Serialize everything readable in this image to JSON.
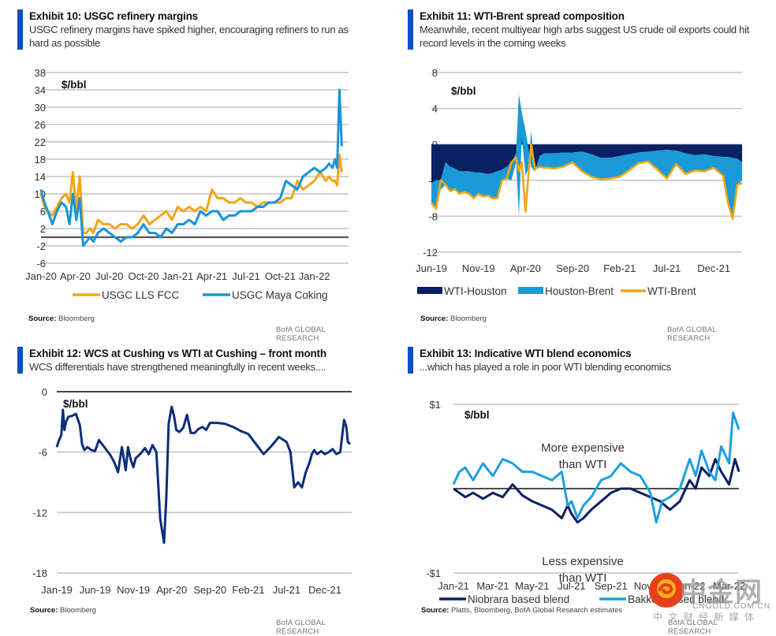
{
  "panels": [
    {
      "title": "Exhibit 10: USGC refinery margins",
      "subtitle": "USGC refinery margins have spiked higher, encouraging refiners to run as hard as possible",
      "source_label": "Source:",
      "source": "Bloomberg",
      "credit": "BofA GLOBAL RESEARCH"
    },
    {
      "title": "Exhibit 11: WTI-Brent spread composition",
      "subtitle": "Meanwhile, recent multiyear high arbs suggest US crude oil exports could hit record levels in the coming weeks",
      "source_label": "Source:",
      "source": "Bloomberg",
      "credit": "BofA GLOBAL RESEARCH"
    },
    {
      "title": "Exhibit 12: WCS at Cushing vs WTI at Cushing – front month",
      "subtitle": "WCS differentials have strengthened meaningfully in recent weeks....",
      "source_label": "Source:",
      "source": "Bloomberg",
      "credit": "BofA GLOBAL RESEARCH"
    },
    {
      "title": "Exhibit 13: Indicative WTI blend economics",
      "subtitle": "...which has played a role in poor WTI blending economics",
      "source_label": "Source:",
      "source": "Platts, Bloomberg, BofA Global Research estimates",
      "credit": "BofA GLOBAL RESEARCH"
    }
  ],
  "watermark": {
    "brand": "中金网",
    "domain": "CNGOLD.COM.CN",
    "tagline": "中 文 财 经 新 媒 体"
  },
  "chart_data": [
    {
      "type": "line",
      "title": "Exhibit 10: USGC refinery margins",
      "unit_label": "$/bbl",
      "ylim": [
        -6,
        38
      ],
      "yticks": [
        "38",
        "34",
        "30",
        "26",
        "22",
        "18",
        "14",
        "10",
        "6",
        "2",
        "-2",
        "-6"
      ],
      "ytick_values": [
        38,
        34,
        30,
        26,
        22,
        18,
        14,
        10,
        6,
        2,
        -2,
        -6
      ],
      "xlim": [
        0,
        27
      ],
      "xticks": [
        "Jan-20",
        "Apr-20",
        "Jul-20",
        "Oct-20",
        "Jan-21",
        "Apr-21",
        "Jul-21",
        "Oct-21",
        "Jan-22"
      ],
      "xtick_values": [
        0,
        3,
        6,
        9,
        12,
        15,
        18,
        21,
        24
      ],
      "zero_line": 0,
      "grid": true,
      "legend": "bottom",
      "series": [
        {
          "name": "USGC LLS FCC",
          "color": "#f2a516",
          "x": [
            0,
            0.3,
            0.6,
            1,
            1.4,
            1.8,
            2.2,
            2.5,
            2.8,
            3.1,
            3.4,
            3.7,
            4,
            4.3,
            4.6,
            5,
            5.5,
            6,
            6.5,
            7,
            7.5,
            8,
            8.5,
            9,
            9.5,
            10,
            10.5,
            11,
            11.5,
            12,
            12.5,
            13,
            13.5,
            14,
            14.5,
            15,
            15.5,
            16,
            16.5,
            17,
            17.5,
            18,
            18.5,
            19,
            19.5,
            20,
            20.5,
            21,
            21.5,
            22,
            22.5,
            23,
            23.5,
            24,
            24.5,
            25,
            25.3,
            25.6,
            25.8,
            26,
            26.2,
            26.4
          ],
          "values": [
            10,
            7,
            6,
            5,
            7,
            9,
            10,
            8,
            15,
            6,
            14,
            1,
            1,
            2,
            1,
            4,
            3,
            3,
            2,
            3,
            3,
            2,
            3,
            5,
            3,
            4,
            5,
            6,
            4,
            7,
            6,
            7,
            6,
            7,
            6,
            11,
            9,
            9,
            8,
            8,
            9,
            8,
            8,
            7,
            8,
            8,
            8,
            8,
            9,
            9,
            13,
            11,
            12,
            13,
            15,
            13,
            14,
            13,
            13,
            12,
            19,
            15
          ]
        },
        {
          "name": "USGC Maya Coking",
          "color": "#1795d8",
          "x": [
            0,
            0.3,
            0.6,
            1,
            1.4,
            1.8,
            2.2,
            2.5,
            2.8,
            3.1,
            3.4,
            3.7,
            4,
            4.3,
            4.6,
            5,
            5.5,
            6,
            6.5,
            7,
            7.5,
            8,
            8.5,
            9,
            9.5,
            10,
            10.5,
            11,
            11.5,
            12,
            12.5,
            13,
            13.5,
            14,
            14.5,
            15,
            15.5,
            16,
            16.5,
            17,
            17.5,
            18,
            18.5,
            19,
            19.5,
            20,
            20.5,
            21,
            21.5,
            22,
            22.5,
            23,
            23.5,
            24,
            24.5,
            25,
            25.3,
            25.6,
            25.8,
            26,
            26.2,
            26.4
          ],
          "values": [
            11,
            8,
            6,
            3,
            6,
            8,
            7,
            3,
            10,
            4,
            9,
            -2,
            -1,
            0,
            -1,
            1,
            2,
            1,
            0,
            -1,
            0,
            0,
            1,
            3,
            1,
            1,
            0,
            2,
            1,
            3,
            3,
            4,
            3,
            6,
            5,
            6,
            6,
            4,
            5,
            5,
            6,
            6,
            6,
            7,
            7,
            8,
            8,
            9,
            13,
            12,
            11,
            14,
            15,
            16,
            15,
            16,
            17,
            16,
            18,
            16,
            34,
            21
          ]
        }
      ]
    },
    {
      "type": "area",
      "title": "Exhibit 11: WTI-Brent spread composition",
      "unit_label": "$/bbl",
      "ylim": [
        -12,
        8
      ],
      "yticks": [
        "8",
        "4",
        "0",
        "-4",
        "-8",
        "-12"
      ],
      "ytick_values": [
        8,
        4,
        0,
        -4,
        -8,
        -12
      ],
      "xlim": [
        0,
        33
      ],
      "xticks": [
        "Jun-19",
        "Nov-19",
        "Apr-20",
        "Sep-20",
        "Feb-21",
        "Jul-21",
        "Dec-21"
      ],
      "xtick_values": [
        0,
        5,
        10,
        15,
        20,
        25,
        30
      ],
      "grid": true,
      "legend": "bottom",
      "x": [
        0,
        0.5,
        1,
        1.5,
        2,
        2.5,
        3,
        3.5,
        4,
        4.5,
        5,
        5.5,
        6,
        6.5,
        7,
        7.5,
        8,
        8.5,
        9,
        9.3,
        9.6,
        10,
        10.3,
        10.6,
        11,
        11.5,
        12,
        12.5,
        13,
        14,
        15,
        16,
        17,
        18,
        19,
        20,
        21,
        22,
        23,
        24,
        25,
        26,
        27,
        28,
        29,
        30,
        31,
        31.5,
        32,
        32.5,
        33
      ],
      "series": [
        {
          "name": "WTI-Houston",
          "color": "#0b1f63",
          "values": [
            -4.3,
            -4,
            -4,
            -2,
            -2.5,
            -2.7,
            -3,
            -3,
            -3,
            -3.1,
            -3.1,
            -3.2,
            -3.3,
            -3.2,
            -3,
            -2.8,
            -2.5,
            -2,
            -1,
            5.5,
            3.5,
            1.5,
            -0.5,
            -2.5,
            -3,
            -1.3,
            -1,
            -1,
            -1,
            -0.9,
            -0.9,
            -0.8,
            -1.1,
            -1.5,
            -1.5,
            -1.3,
            -1.1,
            -0.9,
            -0.8,
            -0.7,
            -0.6,
            -0.7,
            -1,
            -1.2,
            -1.1,
            -1.3,
            -1.4,
            -1.4,
            -1.5,
            -1.6,
            -2
          ]
        },
        {
          "name": "Houston-Brent",
          "color": "#1a9ad6",
          "values": [
            -6.5,
            -7.2,
            -5,
            -4.5,
            -5.2,
            -5,
            -5.5,
            -5.3,
            -5.5,
            -6,
            -5.5,
            -5.8,
            -5.7,
            -6,
            -6,
            -4,
            -3.8,
            -4,
            -2,
            -8,
            0.8,
            -3.5,
            -2.7,
            1.5,
            -2.7,
            -2.5,
            -2.6,
            -2.6,
            -2.7,
            -2.5,
            -2,
            -3,
            -3.6,
            -3.9,
            -3.8,
            -3.6,
            -2.9,
            -2.1,
            -1.9,
            -2.8,
            -3.8,
            -2.2,
            -3.3,
            -2.9,
            -3,
            -2.6,
            -3.5,
            -6.5,
            -8.3,
            -4.5,
            -4
          ]
        },
        {
          "name": "WTI-Brent",
          "color": "#f2a516",
          "line": true,
          "values": [
            -6.5,
            -7.2,
            -4,
            -4.5,
            -5.2,
            -5,
            -5.5,
            -5.3,
            -5.5,
            -6,
            -5.5,
            -5.8,
            -5.7,
            -6,
            -6,
            -4,
            -3.8,
            -2,
            -1.5,
            -3,
            -2,
            -7.5,
            -3.5,
            0,
            -2.7,
            -2.5,
            -2.6,
            -2.6,
            -2.7,
            -2.5,
            -2,
            -3,
            -3.6,
            -3.9,
            -3.8,
            -3.6,
            -2.9,
            -2.1,
            -1.9,
            -2.8,
            -3.8,
            -2.2,
            -3.3,
            -2.9,
            -3,
            -2.6,
            -3.5,
            -6.5,
            -8.3,
            -4.5,
            -4.3
          ]
        }
      ]
    },
    {
      "type": "line",
      "title": "Exhibit 12: WCS at Cushing vs WTI at Cushing – front month",
      "unit_label": "$/bbl",
      "ylim": [
        -18,
        0
      ],
      "yticks": [
        "0",
        "-6",
        "-12",
        "-18"
      ],
      "ytick_values": [
        0,
        -6,
        -12,
        -18
      ],
      "xlim": [
        0,
        38.5
      ],
      "xticks": [
        "Jan-19",
        "Jun-19",
        "Nov-19",
        "Apr-20",
        "Sep-20",
        "Feb-21",
        "Jul-21",
        "Dec-21"
      ],
      "xtick_values": [
        0,
        5,
        10,
        15,
        20,
        25,
        30,
        35
      ],
      "zero_line": 0,
      "grid": true,
      "legend": "none",
      "series": [
        {
          "name": "WCS-WTI",
          "color": "#0b2d7a",
          "x": [
            0,
            0.3,
            0.6,
            0.8,
            1,
            1.2,
            1.5,
            2,
            2.5,
            3,
            3.3,
            3.6,
            4,
            4.5,
            5,
            5.5,
            6,
            6.5,
            7,
            7.5,
            8,
            8.5,
            9,
            9.3,
            9.6,
            10,
            10.3,
            10.6,
            11,
            11.5,
            12,
            12.5,
            13,
            13.5,
            14,
            14.3,
            14.6,
            15,
            15.3,
            15.6,
            16,
            16.5,
            17,
            17.5,
            18,
            18.5,
            19,
            19.5,
            20,
            21,
            22,
            23,
            24,
            25,
            26,
            27,
            28,
            29,
            30,
            30.5,
            31,
            31.5,
            32,
            32.5,
            33,
            33.3,
            33.6,
            34,
            34.5,
            35,
            35.5,
            36,
            36.5,
            37,
            37.5,
            37.8,
            38,
            38.3
          ],
          "values": [
            -5.5,
            -4.8,
            -4.3,
            -1.8,
            -3.8,
            -3,
            -2.5,
            -2.4,
            -2.2,
            -3.3,
            -5.2,
            -5.8,
            -5.5,
            -5.8,
            -5.9,
            -4.8,
            -5.3,
            -5.8,
            -6.3,
            -7,
            -8,
            -5.5,
            -7.8,
            -5.5,
            -6.6,
            -7.5,
            -6.6,
            -6.4,
            -6.1,
            -5.6,
            -6.2,
            -5.3,
            -6,
            -12.6,
            -15,
            -10.5,
            -3.2,
            -1.5,
            -2.4,
            -3.8,
            -4,
            -3.6,
            -2.3,
            -4.1,
            -4.1,
            -3.7,
            -3.5,
            -3.8,
            -3.1,
            -3.1,
            -3.2,
            -3.5,
            -3.9,
            -4.2,
            -5.2,
            -6.2,
            -5.4,
            -4.5,
            -5,
            -6,
            -9.5,
            -9,
            -9.5,
            -8,
            -7,
            -6.2,
            -5.8,
            -6.2,
            -5.9,
            -6.2,
            -6,
            -5.7,
            -6.2,
            -6,
            -2.8,
            -3.5,
            -5,
            -5.2
          ]
        }
      ]
    },
    {
      "type": "line",
      "title": "Exhibit 13: Indicative WTI blend economics",
      "unit_label": "$/bbl",
      "ylim": [
        -1,
        1
      ],
      "yticks": [
        "$1",
        "-$1"
      ],
      "ytick_values": [
        1,
        -1
      ],
      "xlim": [
        0,
        14.5
      ],
      "xticks": [
        "Jan-21",
        "Mar-21",
        "May-21",
        "Jul-21",
        "Sep-21",
        "Nov-21",
        "Jan-22",
        "Mar-22"
      ],
      "xtick_values": [
        0,
        2,
        4,
        6,
        8,
        10,
        12,
        14
      ],
      "zero_line": 0,
      "grid": true,
      "legend": "bottom",
      "annotations": [
        "More expensive than WTI",
        "Less expensive than WTI"
      ],
      "series": [
        {
          "name": "Niobrara based blend",
          "color": "#0b1f63",
          "x": [
            0,
            0.3,
            0.6,
            1,
            1.5,
            2,
            2.5,
            3,
            3.5,
            4,
            4.5,
            5,
            5.5,
            5.8,
            6,
            6.3,
            6.6,
            7,
            7.5,
            8,
            8.5,
            9,
            9.5,
            10,
            10.5,
            11,
            11.5,
            12,
            12.3,
            12.6,
            13,
            13.3,
            13.6,
            14,
            14.3,
            14.5
          ],
          "values": [
            0,
            -0.05,
            -0.1,
            -0.05,
            -0.12,
            -0.05,
            -0.1,
            0.05,
            -0.08,
            -0.15,
            -0.2,
            -0.25,
            -0.35,
            -0.2,
            -0.3,
            -0.4,
            -0.35,
            -0.25,
            -0.15,
            -0.05,
            0,
            0,
            -0.05,
            -0.1,
            -0.15,
            -0.25,
            -0.15,
            0.1,
            0,
            0.25,
            0.15,
            0.35,
            0.2,
            0.05,
            0.35,
            0.2
          ]
        },
        {
          "name": "Bakken based blend",
          "color": "#1ba0e0",
          "x": [
            0,
            0.3,
            0.6,
            1,
            1.5,
            2,
            2.5,
            3,
            3.5,
            4,
            4.5,
            5,
            5.5,
            5.8,
            6,
            6.3,
            6.6,
            7,
            7.5,
            8,
            8.5,
            9,
            9.5,
            10,
            10.3,
            10.6,
            11,
            11.5,
            12,
            12.3,
            12.6,
            13,
            13.3,
            13.6,
            14,
            14.2,
            14.5
          ],
          "values": [
            0.05,
            0.2,
            0.25,
            0.1,
            0.3,
            0.15,
            0.35,
            0.3,
            0.2,
            0.2,
            0.15,
            0.1,
            0.2,
            -0.2,
            -0.15,
            -0.35,
            -0.2,
            -0.1,
            0.1,
            0.15,
            0.3,
            0.2,
            0.15,
            -0.05,
            -0.4,
            -0.15,
            -0.1,
            0,
            0.35,
            0.15,
            0.45,
            0.2,
            0.1,
            0.5,
            0.3,
            0.9,
            0.7
          ]
        }
      ]
    }
  ]
}
